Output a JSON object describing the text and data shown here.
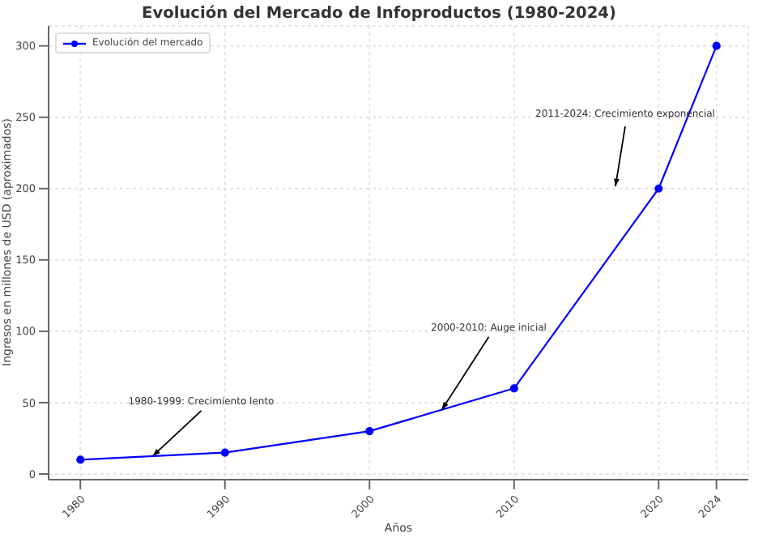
{
  "chart_data": {
    "type": "line",
    "title": "Evolución del Mercado de Infoproductos (1980-2024)",
    "xlabel": "Años",
    "ylabel": "Ingresos en millones de USD (aproximados)",
    "x": [
      1980,
      1990,
      2000,
      2010,
      2020,
      2024
    ],
    "series": [
      {
        "name": "Evolución del mercado",
        "color": "#0000ff",
        "values": [
          10,
          15,
          30,
          60,
          200,
          300
        ]
      }
    ],
    "xlim": [
      1977.8,
      2026.2
    ],
    "xticks": [
      1980,
      1990,
      2000,
      2010,
      2020,
      2024
    ],
    "ylim": [
      -4,
      314
    ],
    "yticks": [
      0,
      50,
      100,
      150,
      200,
      250,
      300
    ],
    "grid": true,
    "legend": "top left",
    "marker": "circle",
    "line_style": "solid",
    "annotations": [
      {
        "text": "1980-1999: Crecimiento lento",
        "x": 1985,
        "y": 12.5
      },
      {
        "text": "2000-2010: Auge inicial",
        "x": 2005,
        "y": 45
      },
      "2011-2024: Crecimiento exponencial"
    ]
  }
}
